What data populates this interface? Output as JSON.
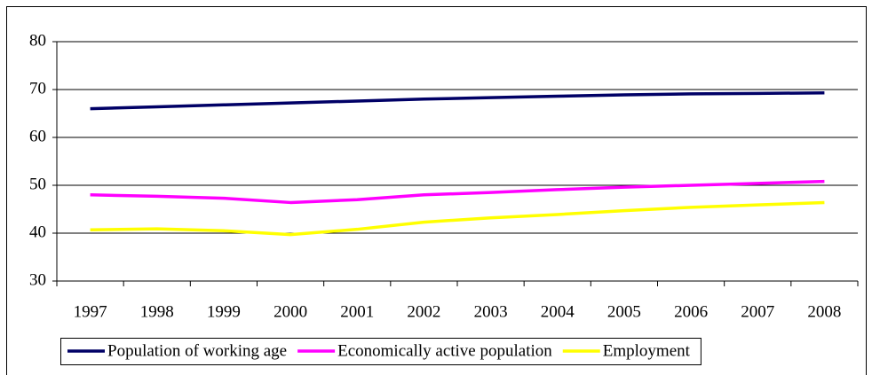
{
  "chart_data": {
    "type": "line",
    "categories": [
      "1997",
      "1998",
      "1999",
      "2000",
      "2001",
      "2002",
      "2003",
      "2004",
      "2005",
      "2006",
      "2007",
      "2008"
    ],
    "series": [
      {
        "name": "Population of working age",
        "color": "#000066",
        "values": [
          66.0,
          66.4,
          66.8,
          67.2,
          67.6,
          68.0,
          68.3,
          68.6,
          68.9,
          69.1,
          69.2,
          69.3
        ]
      },
      {
        "name": "Economically active population",
        "color": "#ff00ff",
        "values": [
          48.0,
          47.7,
          47.3,
          46.4,
          47.0,
          48.0,
          48.5,
          49.1,
          49.6,
          50.0,
          50.4,
          50.8
        ]
      },
      {
        "name": "Employment",
        "color": "#ffff00",
        "values": [
          40.7,
          40.9,
          40.5,
          39.7,
          40.8,
          42.3,
          43.2,
          43.9,
          44.7,
          45.4,
          45.9,
          46.4
        ]
      }
    ],
    "ylim": [
      30,
      80
    ],
    "yticks": [
      30,
      40,
      50,
      60,
      70,
      80
    ],
    "grid": true,
    "legend": "bottom"
  }
}
